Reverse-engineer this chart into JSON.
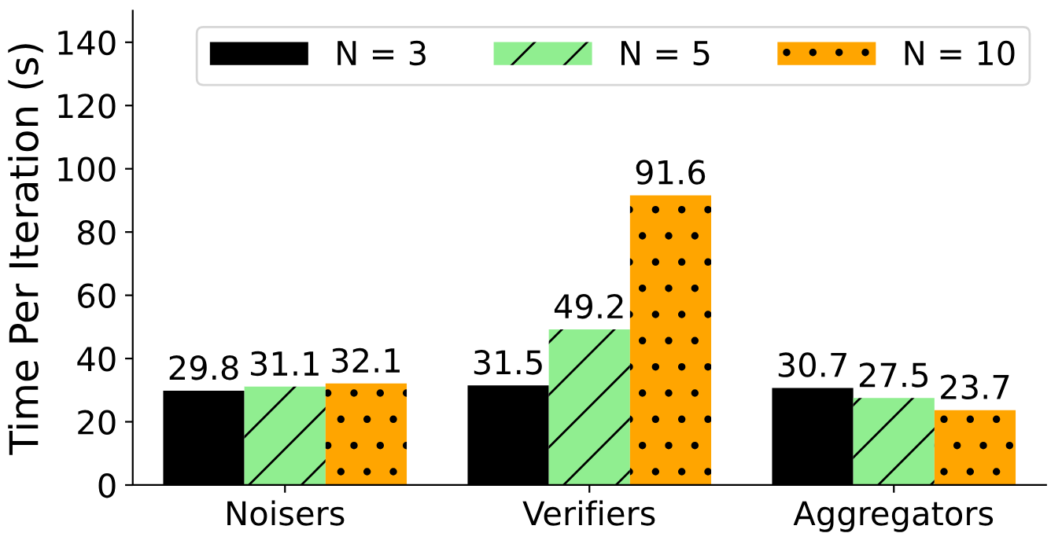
{
  "chart_data": {
    "type": "bar",
    "ylabel": "Time Per Iteration (s)",
    "categories": [
      "Noisers",
      "Verifiers",
      "Aggregators"
    ],
    "series": [
      {
        "name": "N = 3",
        "color": "#000000",
        "values": [
          29.8,
          31.5,
          30.7
        ]
      },
      {
        "name": "N = 5",
        "color": "#90ee90",
        "values": [
          31.1,
          49.2,
          27.5
        ]
      },
      {
        "name": "N = 10",
        "color": "#ffa500",
        "values": [
          32.1,
          91.6,
          23.7
        ]
      }
    ],
    "ylim": [
      0,
      150
    ],
    "yticks": [
      0,
      20,
      40,
      60,
      80,
      100,
      120,
      140
    ],
    "data_labels": true,
    "legend": "top right",
    "grid": false
  }
}
